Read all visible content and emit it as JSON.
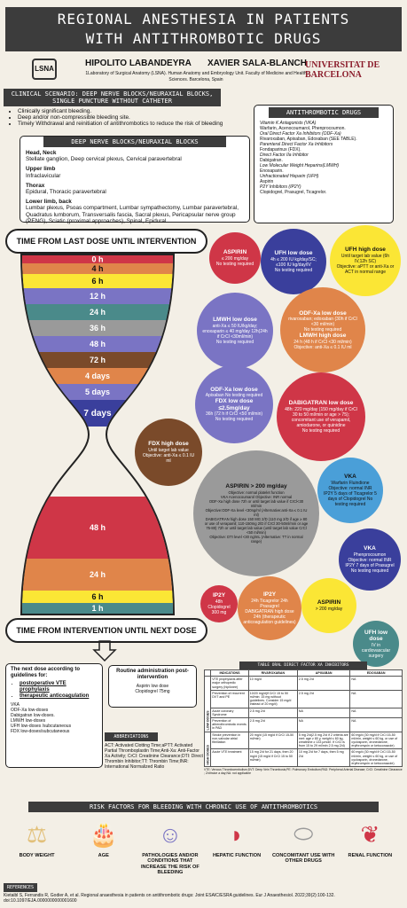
{
  "header": {
    "title_line1": "REGIONAL ANESTHESIA IN PATIENTS",
    "title_line2": "WITH ANTITHROMBOTIC DRUGS",
    "author1": "HIPOLITO LABANDEYRA",
    "author2": "XAVIER SALA-BLANCH",
    "affiliation": "1Laboratory of Surgical Anatomy (LSNA). Human Anatomy and Embryology Unit. Faculty of Medicine and Health Sciences. Barcelona, Spain",
    "logo_left": "LSNA",
    "logo_right": "UNIVERSITAT DE BARCELONA"
  },
  "scenario": {
    "heading": "CLINICAL SCENARIO: DEEP NERVE BLOCKS/NEURAXIAL BLOCKS, SINGLE PUNCTURE WITHOUT CATHETER",
    "items": [
      "Clinically significant bleeding.",
      "Deep and/or non-compressible bleeding site.",
      "Timely Withdrawal and reinitiation of antithrombotics to reduce the risk of bleeding"
    ]
  },
  "deep_blocks": {
    "heading": "DEEP NERVE BLOCKS/NEURAXIAL BLOCKS",
    "groups": [
      {
        "title": "Head, Neck",
        "text": "Stellate ganglion, Deep cervical plexus, Cervical paravertebral"
      },
      {
        "title": "Upper limb",
        "text": "Infraclavicular"
      },
      {
        "title": "Thorax",
        "text": "Epidural, Thoracic paravertebral"
      },
      {
        "title": "Lower limb, back",
        "text": "Lumbar plexus, Psoas compartment, Lumbar sympathectomy, Lumbar paravertebral, Quadratus lumborum, Transversalis fascia, Sacral plexus, Pericapsular nerve group (PENG), Sciatic (proximal approaches), Spinal, Epidural"
      }
    ]
  },
  "drugs": {
    "heading": "ANTITHROMBOTIC DRUGS",
    "lines": [
      "Vitamin K Antagonists (VKA)",
      "Warfarin, Acenocoumarol, Phenprocoumon.",
      "Oral Direct Factor Xa Inhibitors (ODF-Xa)",
      "Rivaroxaban, Apixaban, Edoxaban (SEE TABLE).",
      "Parenteral Direct Factor Xa Inhibitors",
      "Fondaparinux (FDX).",
      "Direct Factor IIa Inhibitor",
      "Dabigatran.",
      "Low Molecular Weight Heparins(LMWH)",
      "Enoxaparin.",
      "Unfractionated Heparin (UFH)",
      "Aspirin",
      "P2Y Inhibitors (IP2Y)",
      "Clopidogrel, Prasugrel, Ticagrelor."
    ]
  },
  "timeline": {
    "top_label": "TIME FROM LAST DOSE UNTIL INTERVENTION",
    "bottom_label": "TIME FROM INTERVENTION UNTIL NEXT DOSE",
    "top_bands": [
      "0 h",
      "4 h",
      "6 h",
      "12 h",
      "24 h",
      "36 h",
      "48 h",
      "72 h",
      "4 days",
      "5 days",
      "7 days"
    ],
    "bottom_bands": [
      "48 h",
      "24 h",
      "6 h",
      "1 h"
    ]
  },
  "circles": {
    "aspirin": {
      "title": "ASPIRIN",
      "text": "≤ 200 mg/day\nNo testing required"
    },
    "ufh_low": {
      "title": "UFH low dose",
      "text": "4h ≤ 200 IU kg/day/SC; ≤100 IU kg/day/IV\nNo testing required"
    },
    "ufh_high": {
      "title": "UFH high dose",
      "text": "Until target lab value (6h IV,12h SC)\nObjective: aPTT or anti-Xa or ACT in normal range"
    },
    "lmwh_low": {
      "title": "LMWH low dose",
      "text": "anti-Xa ≤ 50 IU/kg/day; enoxaparin ≤ 40 mg/day 12h(24h if CrCl <30ml/min)\nNo testing required"
    },
    "odfxa_low": {
      "title": "ODF-Xa low dose",
      "text": "rivaroxaban; edoxaban (30h if CrCl <30 ml/min)\nNo testing required"
    },
    "lmwh_high": {
      "title": "LMWH high dose",
      "text": "24 h (48 h if CrCl <30 ml/min)\nObjective: anti-Xa ≤ 0.1 IU ml"
    },
    "odfxa_low2": {
      "title": "ODF-Xa low dose",
      "text": "Apixaban No testing required"
    },
    "fdx_low": {
      "title": "FDX low dose ≤2.5mg/day",
      "text": "36h (72 h if CrCl <50 ml/min)\nNo testing required"
    },
    "dabi_low": {
      "title": "DABIGATRAN low dose",
      "text": "48h: 220 mg/day (150 mg/day if CrCl 30 to 50 ml/min or age > 75); concomitant use of verapamil, amiodarone, or quinidine\nNo testing required"
    },
    "fdx_high": {
      "title": "FDX high dose",
      "text": "Until target lab value\nObjective: anti-Xa ≤ 0.1 IU ml"
    },
    "big_gray": {
      "title": "ASPIRIN > 200 mg/day",
      "text": "Objective: normal platelet function\nVKA Acenocoumarol Objective: INR normal\nODF-Xa high dose 72h or until target lab value if CrCl<30 ml/min\nObjective:ODF-Xa level <30ng/ml (Alternative:anti-Xa ≤ 0.1 IU ml)\nDABIGATRAN high dose 150 MG 2/D (110 mg 2/D if age ≥ 80 or use of verapamil; 110-150mg 2/D if CrCl 30-50ml/min or age 75-80) 72h or until target lab value (until target lab value CrCl <50 ml/min)\nObjective: DTI level <30 ng/mL (Alternative: TT in normal range)"
    },
    "vka": {
      "title": "VKA",
      "text": "Warfarin Fluindione Objective: normal INR\nIP2Y 5 days of Ticagrelor 5 days of Clopidogrel No testing required"
    },
    "ip2y_phen": {
      "title": "VKA",
      "text": "Phenprocoumon Objective: normal INR\nIP2Y 7 days of Prasugrel No testing required"
    },
    "ip2y_clop": {
      "title": "IP2Y",
      "text": "48h Clopidogrel 300 mg"
    },
    "ip2y_tica": {
      "title": "IP2Y",
      "text": "24h Ticagrelor 24h Prasugrel\nDABIGATRAN high dose 24h (therapeutic anticoagulation guidelines)"
    },
    "aspirin_high": {
      "title": "ASPIRIN",
      "text": "> 200 mg/day"
    },
    "ufh_low2": {
      "title": "UFH low dose",
      "text": "IV in cardiovascular surgery"
    }
  },
  "next_dose": {
    "heading": "The next dose according to guidelines for:",
    "bullets": [
      "postoperative VTE prophylaxis",
      "therapeutic anticoagulation"
    ],
    "list": [
      "VKA",
      "ODF-Xa low-doses",
      "Dabigatran low-doses.",
      "LMWH low-doses",
      "UFH low-doses /subcutaneous",
      "FDX low-doses/subcutaneous"
    ]
  },
  "routine": {
    "heading": "Routine administration post-intervention",
    "items": [
      "Aspirin low dose",
      "Clopidogrel 75mg"
    ]
  },
  "abbrev": {
    "heading": "ABBREVIATIONS",
    "text": "ACT: Activated Clotting Time;aPTT: Activated Partial Thromboplastin Time;Anti-Xa: Anti-Factor Xa Activity; CrCl: Creatinine Clearance;DTI: Direct Thrombin Inhibitor;TT: Thrombin Time;INR: International Normalized Ratio"
  },
  "table": {
    "heading": "TABLE ORAL DIRECT FACTOR XA INHIBITORS",
    "columns": [
      "INDICATIONS",
      "RIVAROXABAN",
      "APIXABAN",
      "EDOXABAN"
    ],
    "rows": [
      [
        "VTE prophylaxis after major orthopedic surgery (hip/knee)",
        "10 mg/d",
        "2.5 mg 2/d",
        "NA"
      ],
      [
        "Prevention of recurrent DVT and PE",
        "10/20 mg/d(if CrCl 15 to 50 ml/min: 15 mg without guidelines. Consider 15 mg/d instead of 20 mg/d)",
        "2.5 mg 2/d",
        "NA"
      ],
      [
        "Acute coronary Syndrome",
        "2.5 mg 2/d",
        "NA",
        "NA"
      ],
      [
        "Prevention of atherothrombotic events in PAD",
        "2.5 mg 2/d",
        "NA",
        "NA"
      ],
      [
        "Stroke prevention in non-valvular atrial fibrillation",
        "20 mg/d (15 mg/d if CrCl 15-50 ml/min)",
        "5 mg 2/d(2.5 mg 2/d if 2 criteria are met: age ≥ 80 y, weight ≤ 60 kg, creatinine ≥ 133 µmol/l. If CrCl is from 15 to 29 ml/min 2.5 mg 2/d)",
        "60 mg/d (30 mg/d if CrCl 15-50 ml/min, weight ≤ 60 kg, or use of cyclosporin, dronedarone, erythromycin or ketoconazole)"
      ],
      [
        "Acute VTE treatment",
        "15 mg 2/d for 21 days, then 20 mg/d (15 mg/d if CrCl 15 to 50 ml/min)",
        "10 mg 2/d for 7 days, then 5 mg 2/d",
        "60 mg/d (30 mg/d if CrCl 15-50 ml/min, weight ≤ 60 kg, or use of cyclosporin, dronedarone, erythromycin or ketoconazole)"
      ]
    ],
    "row_groups": [
      "LOW DOSES",
      "HIGH DOSES"
    ],
    "footnote": "VTE: Venous Thromboembolism;DVT: Deep Vein Thrombosis;PE: Pulmonary Embolism;PAD: Peripheral Arterial Disease; CrCl: Creatinine Clearance ; 2/d:twice a day;NA: not applicable"
  },
  "risk": {
    "heading": "RISK FACTORS FOR BLEEDING WITH CHRONIC USE OF ANTITHROMBOTICS",
    "items": [
      {
        "icon": "scale-icon",
        "label": "BODY WEIGHT"
      },
      {
        "icon": "cake-icon",
        "label": "AGE"
      },
      {
        "icon": "person-icon",
        "label": "PATHOLOGIES AND/OR CONDITIONS THAT INCREASE THE RISK OF BLEEDING"
      },
      {
        "icon": "liver-icon",
        "label": "HEPATIC FUNCTION"
      },
      {
        "icon": "pills-icon",
        "label": "CONCOMITANT USE WITH OTHER DRUGS"
      },
      {
        "icon": "kidney-icon",
        "label": "RENAL FUNCTION"
      }
    ]
  },
  "references": {
    "heading": "REFERENCES",
    "text": "Kietaibl S, Ferrandis R, Godier A, et al. Regional anaesthesia in patients on antithrombotic drugs: Joint ESAIC/ESRA guidelines. Eur J Anaesthesiol. 2022;39(2):100-132. doi:10.1097/EJA.0000000000001600"
  },
  "colors": {
    "dark": "#3c3c3c",
    "red": "#cf3647",
    "blue": "#3a3f9c",
    "yellow": "#fbe635",
    "purple": "#7a74c4",
    "orange": "#e0854a",
    "brown": "#7a4a2a",
    "gray": "#9a9a9a",
    "teal": "#4a8a8a"
  }
}
